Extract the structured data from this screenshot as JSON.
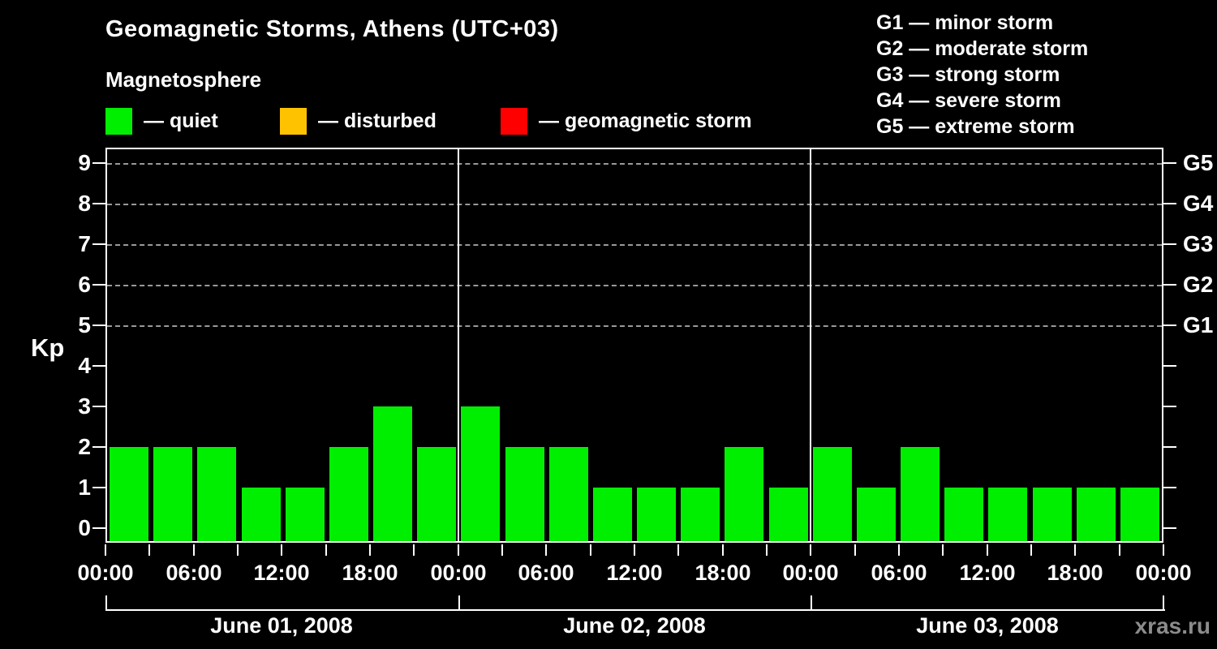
{
  "header": {
    "title": "Geomagnetic Storms, Athens (UTC+03)",
    "subtitle": "Magnetosphere"
  },
  "kp_legend": {
    "items": [
      {
        "name": "quiet",
        "label": "— quiet",
        "color": "#00ee00"
      },
      {
        "name": "disturbed",
        "label": "— disturbed",
        "color": "#ffc200"
      },
      {
        "name": "storm",
        "label": "— geomagnetic storm",
        "color": "#ff0000"
      }
    ]
  },
  "storm_scale_legend": {
    "items": [
      "G1 — minor storm",
      "G2 — moderate storm",
      "G3 — strong storm",
      "G4 — severe storm",
      "G5 — extreme storm"
    ]
  },
  "chart_data": {
    "type": "bar",
    "title": "Geomagnetic Storms, Athens (UTC+03)",
    "ylabel": "Kp",
    "xlabel": "",
    "ylim": [
      0,
      9
    ],
    "y_ticks": [
      0,
      1,
      2,
      3,
      4,
      5,
      6,
      7,
      8,
      9
    ],
    "grid_levels": [
      5,
      6,
      7,
      8,
      9
    ],
    "grid_style": "dashed",
    "right_axis": [
      {
        "value": 5,
        "label": "G1"
      },
      {
        "value": 6,
        "label": "G2"
      },
      {
        "value": 7,
        "label": "G3"
      },
      {
        "value": 8,
        "label": "G4"
      },
      {
        "value": 9,
        "label": "G5"
      }
    ],
    "interval_hours": 3,
    "x_tick_label_cycle": [
      "00:00",
      "06:00",
      "12:00",
      "18:00"
    ],
    "series": [
      {
        "date": "June 01, 2008",
        "values": [
          2,
          2,
          2,
          1,
          1,
          2,
          3,
          2
        ]
      },
      {
        "date": "June 02, 2008",
        "values": [
          3,
          2,
          2,
          1,
          1,
          1,
          2,
          1
        ]
      },
      {
        "date": "June 03, 2008",
        "values": [
          2,
          1,
          2,
          1,
          1,
          1,
          1,
          1
        ]
      }
    ],
    "bar_colors": {
      "quiet": "#00ee00",
      "disturbed": "#ffc200",
      "storm": "#ff0000"
    },
    "thresholds": {
      "disturbed_min": 4,
      "storm_min": 5
    },
    "legend_position": "top"
  },
  "footer": {
    "watermark": "xras.ru"
  }
}
